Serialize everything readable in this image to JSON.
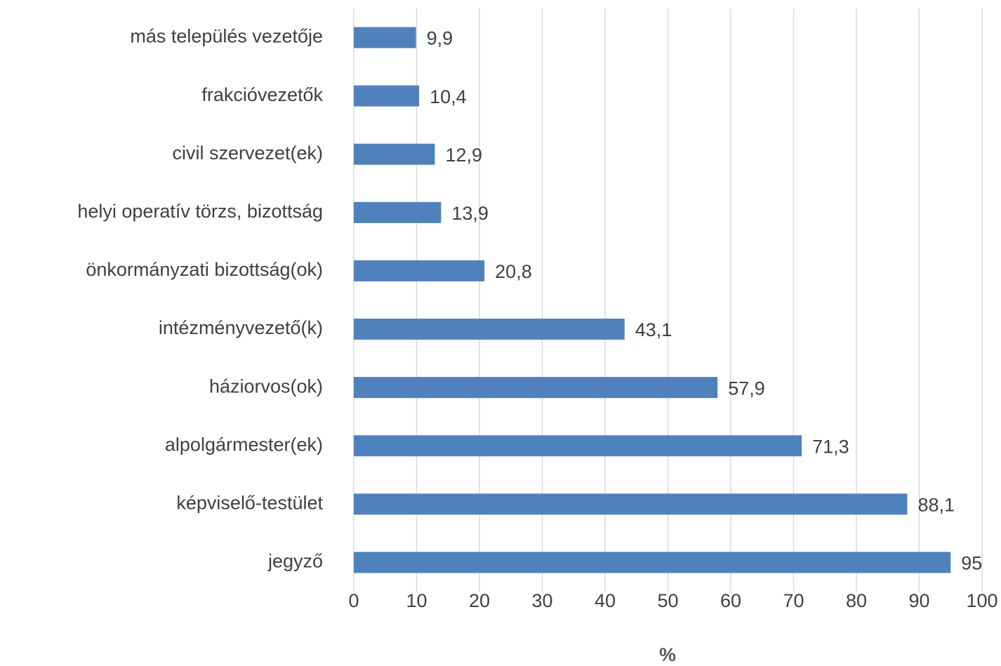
{
  "chart_data": {
    "type": "bar",
    "orientation": "horizontal",
    "categories": [
      "más település vezetője",
      "frakcióvezetők",
      "civil szervezet(ek)",
      "helyi operatív törzs, bizottság",
      "önkormányzati bizottság(ok)",
      "intézményvezető(k)",
      "háziorvos(ok)",
      "alpolgármester(ek)",
      "képviselő-testület",
      "jegyző"
    ],
    "values": [
      9.9,
      10.4,
      12.9,
      13.9,
      20.8,
      43.1,
      57.9,
      71.3,
      88.1,
      95
    ],
    "value_labels": [
      "9,9",
      "10,4",
      "12,9",
      "13,9",
      "20,8",
      "43,1",
      "57,9",
      "71,3",
      "88,1",
      "95"
    ],
    "color": "#4f81bd",
    "x_label": "%",
    "xlim": [
      0,
      100
    ],
    "xticks": [
      0,
      10,
      20,
      30,
      40,
      50,
      60,
      70,
      80,
      90,
      100
    ],
    "grid": true
  }
}
